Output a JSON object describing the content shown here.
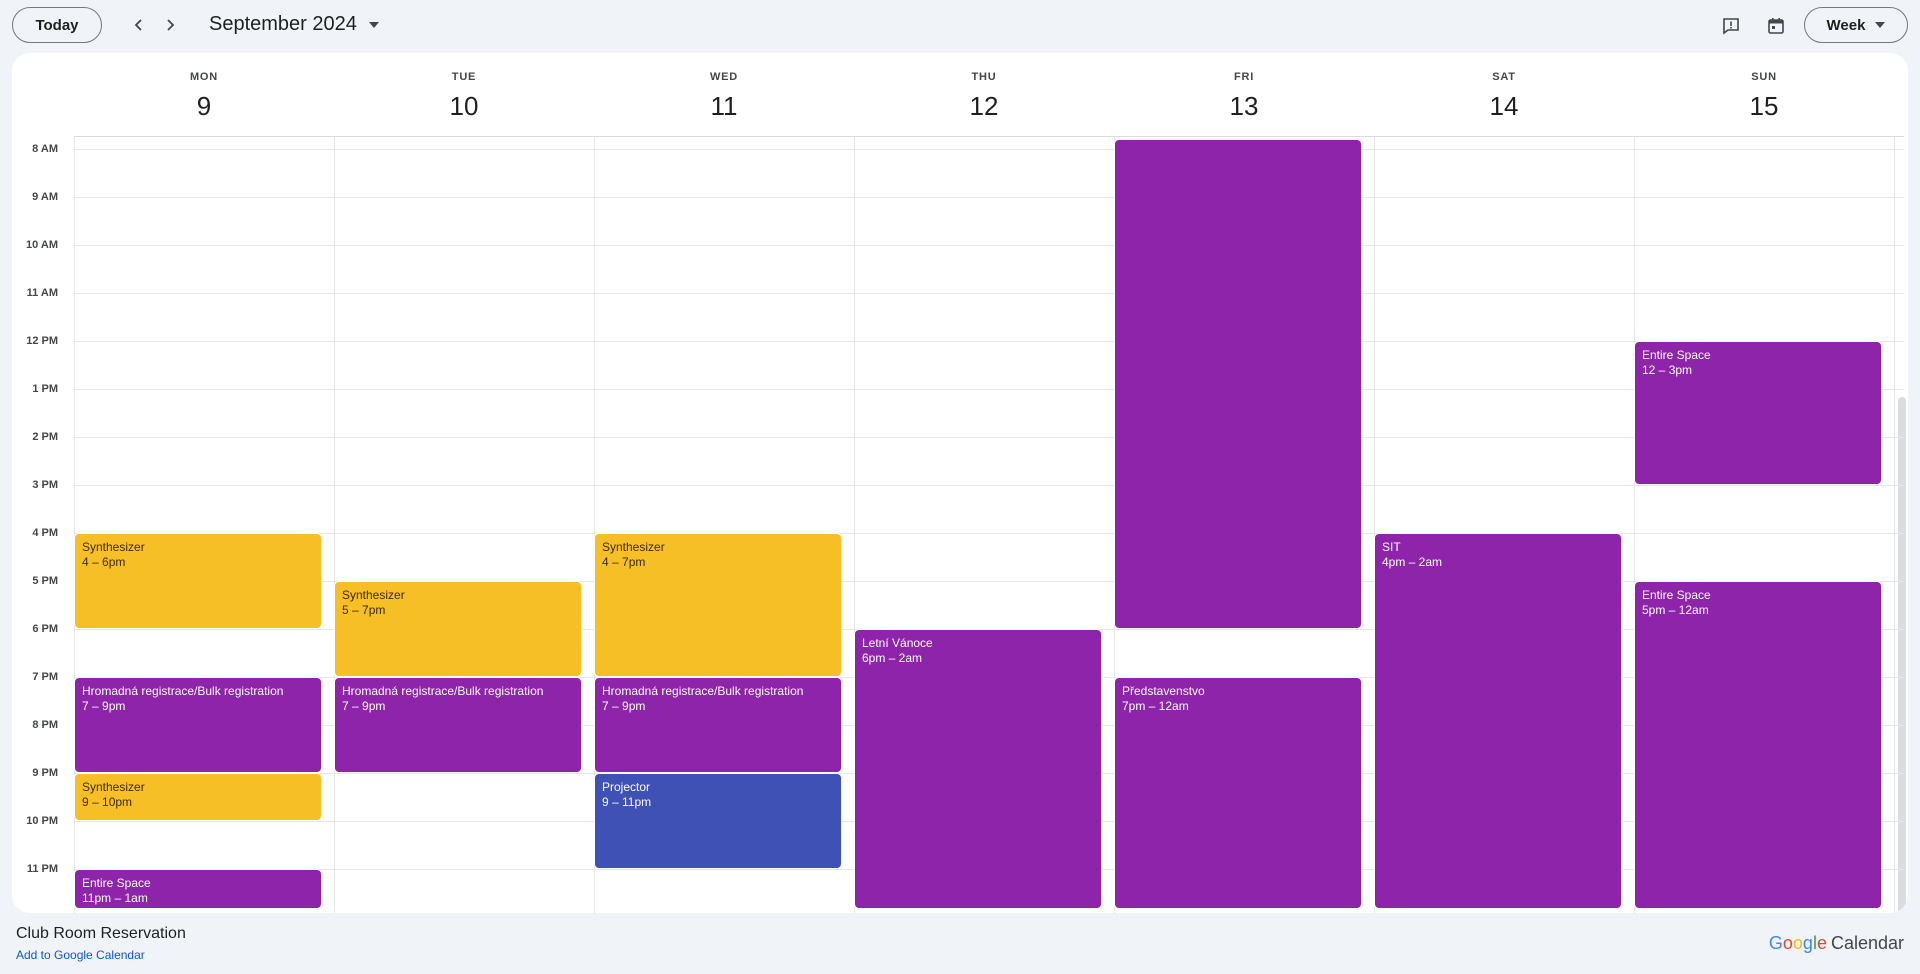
{
  "toolbar": {
    "today_label": "Today",
    "month_label": "September 2024",
    "view_label": "Week"
  },
  "icons": {
    "prev": "chevron-left-icon",
    "next": "chevron-right-icon",
    "feedback": "feedback-icon",
    "calendar": "calendar-icon"
  },
  "days": [
    {
      "name": "MON",
      "num": "9"
    },
    {
      "name": "TUE",
      "num": "10"
    },
    {
      "name": "WED",
      "num": "11"
    },
    {
      "name": "THU",
      "num": "12"
    },
    {
      "name": "FRI",
      "num": "13"
    },
    {
      "name": "SAT",
      "num": "14"
    },
    {
      "name": "SUN",
      "num": "15"
    }
  ],
  "hours": [
    "8 AM",
    "9 AM",
    "10 AM",
    "11 AM",
    "12 PM",
    "1 PM",
    "2 PM",
    "3 PM",
    "4 PM",
    "5 PM",
    "6 PM",
    "7 PM",
    "8 PM",
    "9 PM",
    "10 PM",
    "11 PM"
  ],
  "events": [
    {
      "day": 0,
      "start": 16,
      "end": 18,
      "title": "Synthesizer",
      "time": "4 – 6pm",
      "color": "yellow"
    },
    {
      "day": 0,
      "start": 19,
      "end": 21,
      "title": "Hromadná registrace/Bulk registration",
      "time": "7 – 9pm",
      "color": "purple"
    },
    {
      "day": 0,
      "start": 21,
      "end": 22,
      "title": "Synthesizer",
      "time": "9 – 10pm",
      "color": "yellow"
    },
    {
      "day": 0,
      "start": 23,
      "end": 24,
      "title": "Entire Space",
      "time": "11pm – 1am",
      "color": "purple"
    },
    {
      "day": 1,
      "start": 17,
      "end": 19,
      "title": "Synthesizer",
      "time": "5 – 7pm",
      "color": "yellow"
    },
    {
      "day": 1,
      "start": 19,
      "end": 21,
      "title": "Hromadná registrace/Bulk registration",
      "time": "7 – 9pm",
      "color": "purple"
    },
    {
      "day": 2,
      "start": 16,
      "end": 19,
      "title": "Synthesizer",
      "time": "4 – 7pm",
      "color": "yellow"
    },
    {
      "day": 2,
      "start": 19,
      "end": 21,
      "title": "Hromadná registrace/Bulk registration",
      "time": "7 – 9pm",
      "color": "purple"
    },
    {
      "day": 2,
      "start": 21,
      "end": 23,
      "title": "Projector",
      "time": "9 – 11pm",
      "color": "blue"
    },
    {
      "day": 3,
      "start": 18,
      "end": 24,
      "title": "Letní Vánoce",
      "time": "6pm – 2am",
      "color": "purple"
    },
    {
      "day": 4,
      "start": 7.8,
      "end": 18,
      "title": "",
      "time": "",
      "color": "purple"
    },
    {
      "day": 4,
      "start": 19,
      "end": 24,
      "title": "Představenstvo",
      "time": "7pm – 12am",
      "color": "purple"
    },
    {
      "day": 5,
      "start": 16,
      "end": 24,
      "title": "SIT",
      "time": "4pm – 2am",
      "color": "purple"
    },
    {
      "day": 6,
      "start": 12,
      "end": 15,
      "title": "Entire Space",
      "time": "12 – 3pm",
      "color": "purple"
    },
    {
      "day": 6,
      "start": 17,
      "end": 24,
      "title": "Entire Space",
      "time": "5pm – 12am",
      "color": "purple"
    }
  ],
  "colors": {
    "purple": "#8e24aa",
    "yellow": "#f6bf26",
    "blue": "#3f51b5"
  },
  "footer": {
    "title": "Club Room Reservation",
    "link": "Add to Google Calendar",
    "logo_word1": "Google",
    "logo_word2": "Calendar"
  }
}
